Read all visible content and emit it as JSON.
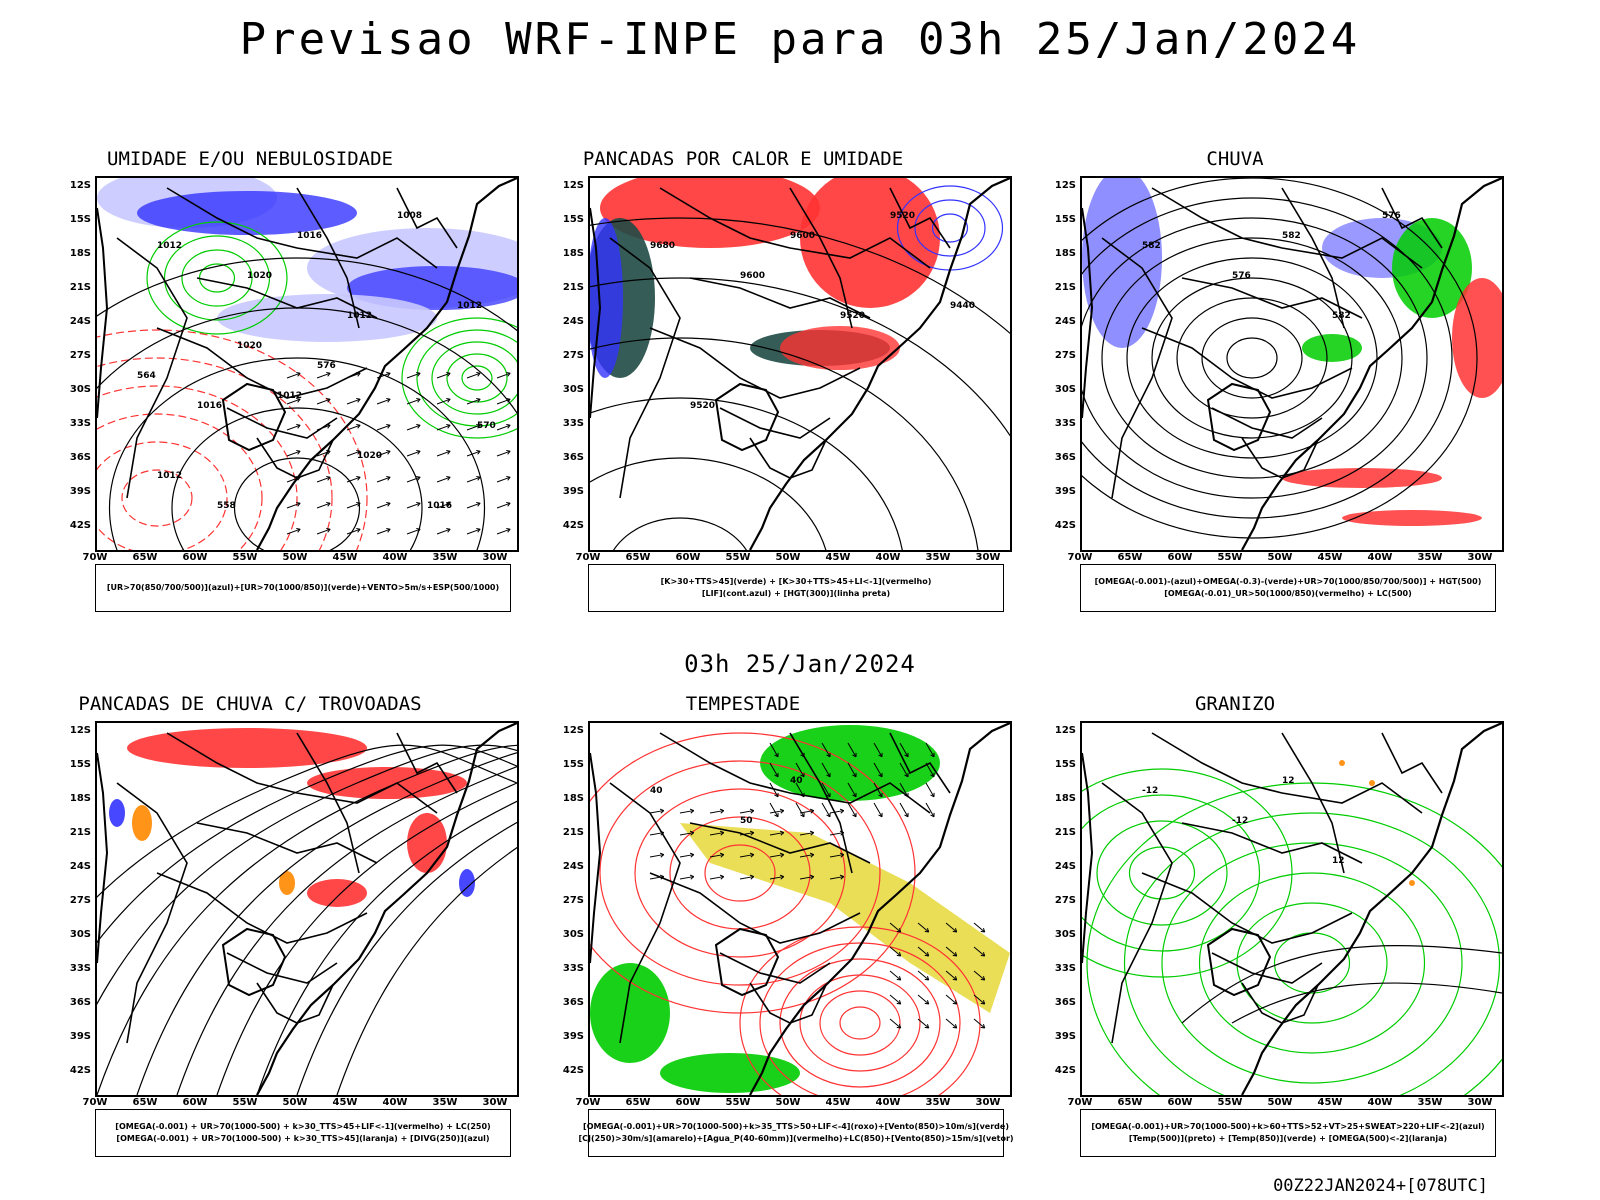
{
  "header": {
    "title": "Previsao WRF-INPE  para 03h 25/Jan/2024"
  },
  "mid_label": "03h 25/Jan/2024",
  "footer": "00Z22JAN2024+[078UTC]",
  "axes": {
    "lat_labels": [
      "12S",
      "15S",
      "18S",
      "21S",
      "24S",
      "27S",
      "30S",
      "33S",
      "36S",
      "39S",
      "42S"
    ],
    "lon_labels": [
      "70W",
      "65W",
      "60W",
      "55W",
      "50W",
      "45W",
      "40W",
      "35W",
      "30W"
    ]
  },
  "colors": {
    "blue": "#3333ff",
    "light_blue": "#c8c8ff",
    "green": "#00cc00",
    "red": "#ff3333",
    "dark_teal": "#1f4a44",
    "yellow": "#e6d83a",
    "orange": "#ff8800"
  },
  "panels": [
    {
      "title": "UMIDADE E/OU NEBULOSIDADE",
      "legend": [
        "[UR>70(850/700/500)](azul)+[UR>70(1000/850)](verde)+VENTO>5m/s+ESP(500/1000)"
      ],
      "contour_labels": [
        "1012",
        "1020",
        "1016",
        "1012",
        "1008",
        "1012",
        "1016",
        "1012",
        "1020",
        "1016",
        "1012",
        "1020",
        "576",
        "570",
        "564",
        "558"
      ]
    },
    {
      "title": "PANCADAS POR CALOR E UMIDADE",
      "legend": [
        "[K>30+TTS>45](verde) + [K>30+TTS>45+LI<-1](vermelho)",
        "[LIF](cont.azul) + [HGT(300)](linha preta)"
      ],
      "contour_labels": [
        "9680",
        "9600",
        "9600",
        "9520",
        "9520",
        "9440",
        "9520"
      ]
    },
    {
      "title": "CHUVA",
      "legend": [
        "[OMEGA(-0.001)-(azul)+OMEGA(-0.3)-(verde)+UR>70(1000/850/700/500)] + HGT(500)",
        "[OMEGA(-0.01)_UR>50(1000/850)(vermelho) + LC(500)"
      ],
      "contour_labels": [
        "582",
        "576",
        "582",
        "582",
        "576"
      ]
    },
    {
      "title": "PANCADAS DE CHUVA C/ TROVOADAS",
      "legend": [
        "[OMEGA(-0.001) + UR>70(1000-500) + k>30_TTS>45+LIF<-1](vermelho) + LC(250)",
        "[OMEGA(-0.001) + UR>70(1000-500) + k>30_TTS>45](laranja) + [DIVG(250)](azul)"
      ],
      "contour_labels": []
    },
    {
      "title": "TEMPESTADE",
      "legend": [
        "[OMEGA(-0.001)+UR>70(1000-500)+k>35_TTS>50+LIF<-4](roxo)+[Vento(850)>10m/s](verde)",
        "[CJ(250)>30m/s](amarelo)+[Agua_P(40-60mm)](vermelho)+LC(850)+[Vento(850)>15m/s](vetor)"
      ],
      "contour_labels": [
        "40",
        "50",
        "40"
      ]
    },
    {
      "title": "GRANIZO",
      "legend": [
        "[OMEGA(-0.001)+UR>70(1000-500)+k>60+TTS>52+VT>25+SWEAT>220+LIF<-2](azul)",
        "[Temp(500)](preto) + [Temp(850)](verde) + [OMEGA(500)<-2](laranja)"
      ],
      "contour_labels": [
        "-12",
        "-12",
        "12",
        "12"
      ]
    }
  ]
}
